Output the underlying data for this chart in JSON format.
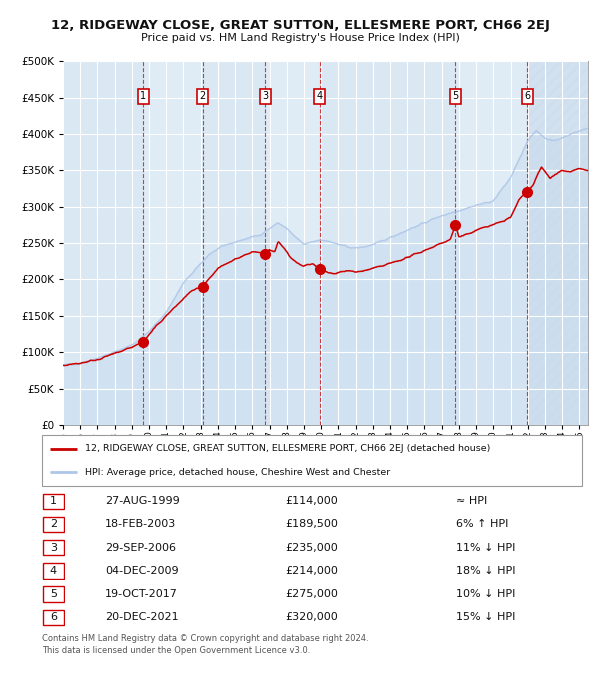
{
  "title": "12, RIDGEWAY CLOSE, GREAT SUTTON, ELLESMERE PORT, CH66 2EJ",
  "subtitle": "Price paid vs. HM Land Registry's House Price Index (HPI)",
  "hpi_color": "#aec6e8",
  "price_color": "#cc0000",
  "sale_marker_color": "#cc0000",
  "background_color": "#dce9f5",
  "plot_bg_color": "#dce9f5",
  "ylim": [
    0,
    500000
  ],
  "yticks": [
    0,
    50000,
    100000,
    150000,
    200000,
    250000,
    300000,
    350000,
    400000,
    450000,
    500000
  ],
  "sales": [
    {
      "num": 1,
      "date_label": "27-AUG-1999",
      "date_x": 1999.65,
      "price": 114000,
      "note": "≈ HPI"
    },
    {
      "num": 2,
      "date_label": "18-FEB-2003",
      "date_x": 2003.12,
      "price": 189500,
      "note": "6% ↑ HPI"
    },
    {
      "num": 3,
      "date_label": "29-SEP-2006",
      "date_x": 2006.74,
      "price": 235000,
      "note": "11% ↓ HPI"
    },
    {
      "num": 4,
      "date_label": "04-DEC-2009",
      "date_x": 2009.92,
      "price": 214000,
      "note": "18% ↓ HPI"
    },
    {
      "num": 5,
      "date_label": "19-OCT-2017",
      "date_x": 2017.8,
      "price": 275000,
      "note": "10% ↓ HPI"
    },
    {
      "num": 6,
      "date_label": "20-DEC-2021",
      "date_x": 2021.97,
      "price": 320000,
      "note": "15% ↓ HPI"
    }
  ],
  "legend_label_price": "12, RIDGEWAY CLOSE, GREAT SUTTON, ELLESMERE PORT, CH66 2EJ (detached house)",
  "legend_label_hpi": "HPI: Average price, detached house, Cheshire West and Chester",
  "footer": "Contains HM Land Registry data © Crown copyright and database right 2024.\nThis data is licensed under the Open Government Licence v3.0.",
  "xmin": 1995.0,
  "xmax": 2025.5,
  "hpi_keypoints": [
    [
      1995.0,
      82000
    ],
    [
      1996.0,
      85000
    ],
    [
      1997.0,
      92000
    ],
    [
      1998.0,
      100000
    ],
    [
      1999.0,
      110000
    ],
    [
      2000.0,
      128000
    ],
    [
      2001.0,
      155000
    ],
    [
      2002.0,
      195000
    ],
    [
      2003.5,
      235000
    ],
    [
      2004.5,
      248000
    ],
    [
      2005.5,
      255000
    ],
    [
      2006.5,
      262000
    ],
    [
      2007.5,
      278000
    ],
    [
      2008.0,
      270000
    ],
    [
      2008.5,
      258000
    ],
    [
      2009.0,
      248000
    ],
    [
      2009.5,
      252000
    ],
    [
      2010.0,
      255000
    ],
    [
      2010.5,
      252000
    ],
    [
      2011.0,
      248000
    ],
    [
      2011.5,
      245000
    ],
    [
      2012.0,
      243000
    ],
    [
      2012.5,
      245000
    ],
    [
      2013.0,
      248000
    ],
    [
      2013.5,
      252000
    ],
    [
      2014.0,
      258000
    ],
    [
      2015.0,
      268000
    ],
    [
      2016.0,
      278000
    ],
    [
      2017.0,
      288000
    ],
    [
      2018.0,
      295000
    ],
    [
      2019.0,
      302000
    ],
    [
      2020.0,
      308000
    ],
    [
      2021.0,
      340000
    ],
    [
      2022.0,
      390000
    ],
    [
      2022.5,
      405000
    ],
    [
      2023.0,
      395000
    ],
    [
      2023.5,
      390000
    ],
    [
      2024.0,
      395000
    ],
    [
      2024.5,
      400000
    ],
    [
      2025.5,
      408000
    ]
  ],
  "price_keypoints": [
    [
      1995.0,
      82000
    ],
    [
      1996.0,
      85000
    ],
    [
      1997.0,
      90000
    ],
    [
      1998.0,
      98000
    ],
    [
      1999.0,
      107000
    ],
    [
      1999.65,
      114000
    ],
    [
      2000.5,
      138000
    ],
    [
      2001.5,
      162000
    ],
    [
      2002.5,
      185000
    ],
    [
      2003.12,
      189500
    ],
    [
      2004.0,
      215000
    ],
    [
      2005.0,
      228000
    ],
    [
      2006.0,
      238000
    ],
    [
      2006.74,
      235000
    ],
    [
      2007.0,
      242000
    ],
    [
      2007.3,
      238000
    ],
    [
      2007.5,
      252000
    ],
    [
      2007.8,
      245000
    ],
    [
      2008.2,
      230000
    ],
    [
      2008.6,
      222000
    ],
    [
      2009.0,
      218000
    ],
    [
      2009.5,
      222000
    ],
    [
      2009.92,
      214000
    ],
    [
      2010.0,
      215000
    ],
    [
      2010.3,
      210000
    ],
    [
      2010.7,
      208000
    ],
    [
      2011.0,
      210000
    ],
    [
      2011.5,
      212000
    ],
    [
      2012.0,
      210000
    ],
    [
      2012.5,
      212000
    ],
    [
      2013.0,
      215000
    ],
    [
      2013.5,
      218000
    ],
    [
      2014.0,
      222000
    ],
    [
      2015.0,
      230000
    ],
    [
      2015.5,
      235000
    ],
    [
      2016.0,
      240000
    ],
    [
      2016.5,
      245000
    ],
    [
      2017.0,
      250000
    ],
    [
      2017.5,
      255000
    ],
    [
      2017.8,
      275000
    ],
    [
      2018.0,
      258000
    ],
    [
      2018.5,
      262000
    ],
    [
      2019.0,
      268000
    ],
    [
      2019.5,
      272000
    ],
    [
      2020.0,
      275000
    ],
    [
      2020.5,
      280000
    ],
    [
      2021.0,
      285000
    ],
    [
      2021.5,
      310000
    ],
    [
      2021.97,
      320000
    ],
    [
      2022.3,
      330000
    ],
    [
      2022.6,
      345000
    ],
    [
      2022.8,
      355000
    ],
    [
      2023.0,
      348000
    ],
    [
      2023.3,
      340000
    ],
    [
      2023.6,
      345000
    ],
    [
      2024.0,
      350000
    ],
    [
      2024.5,
      348000
    ],
    [
      2025.0,
      352000
    ],
    [
      2025.5,
      350000
    ]
  ]
}
